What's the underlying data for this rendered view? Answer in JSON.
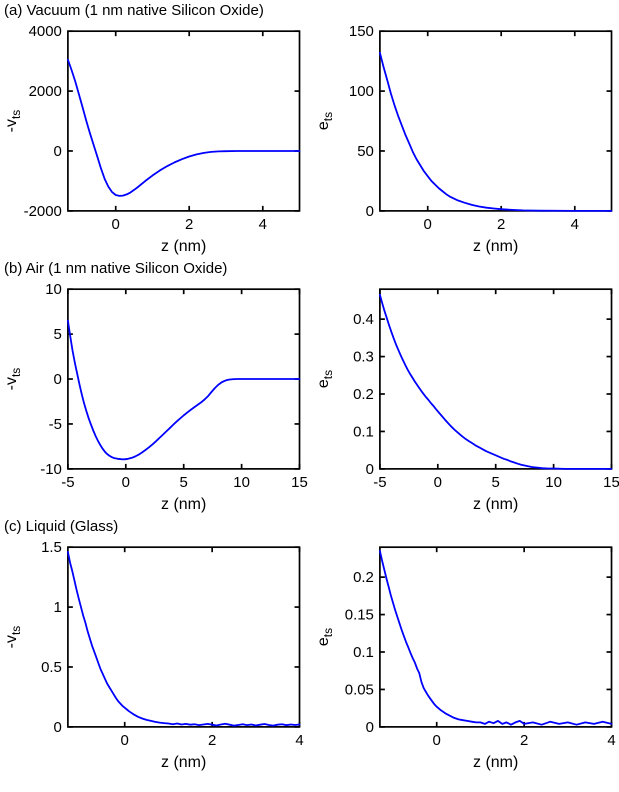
{
  "page": {
    "background": "#ffffff",
    "curve_color": "#0000ff",
    "axis_color": "#000000"
  },
  "sections": [
    {
      "title": "(a) Vacuum (1 nm native Silicon Oxide)"
    },
    {
      "title": "(b) Air (1 nm native Silicon Oxide)"
    },
    {
      "title": "(c) Liquid (Glass)"
    }
  ],
  "chart_data": [
    {
      "type": "line",
      "section": "a",
      "position": "left",
      "xlabel": "z (nm)",
      "ylabel_main": "-v",
      "ylabel_sub": "ts",
      "xlim": [
        -1.3,
        5
      ],
      "ylim": [
        -2000,
        4000
      ],
      "xticks": [
        0,
        2,
        4
      ],
      "yticks": [
        -2000,
        0,
        2000,
        4000
      ],
      "grid": false,
      "legend": null,
      "line_color": "#0000ff",
      "points": [
        [
          -1.3,
          3050
        ],
        [
          -1.2,
          2700
        ],
        [
          -1.1,
          2320
        ],
        [
          -1.0,
          1900
        ],
        [
          -0.9,
          1460
        ],
        [
          -0.8,
          1010
        ],
        [
          -0.7,
          590
        ],
        [
          -0.6,
          200
        ],
        [
          -0.5,
          -190
        ],
        [
          -0.4,
          -580
        ],
        [
          -0.3,
          -930
        ],
        [
          -0.2,
          -1190
        ],
        [
          -0.1,
          -1370
        ],
        [
          0,
          -1470
        ],
        [
          0.1,
          -1500
        ],
        [
          0.2,
          -1490
        ],
        [
          0.3,
          -1450
        ],
        [
          0.4,
          -1385
        ],
        [
          0.5,
          -1300
        ],
        [
          0.6,
          -1205
        ],
        [
          0.8,
          -1005
        ],
        [
          1.0,
          -820
        ],
        [
          1.2,
          -650
        ],
        [
          1.4,
          -505
        ],
        [
          1.6,
          -380
        ],
        [
          1.8,
          -272
        ],
        [
          2.0,
          -182
        ],
        [
          2.2,
          -112
        ],
        [
          2.4,
          -62
        ],
        [
          2.6,
          -30
        ],
        [
          2.8,
          -13
        ],
        [
          3.0,
          -5
        ],
        [
          3.3,
          -1
        ],
        [
          3.6,
          0
        ],
        [
          4.0,
          0
        ],
        [
          4.5,
          0
        ],
        [
          5.0,
          0
        ]
      ]
    },
    {
      "type": "line",
      "section": "a",
      "position": "right",
      "xlabel": "z (nm)",
      "ylabel_main": "e",
      "ylabel_sub": "ts",
      "xlim": [
        -1.3,
        5
      ],
      "ylim": [
        0,
        150
      ],
      "xticks": [
        0,
        2,
        4
      ],
      "yticks": [
        0,
        50,
        100,
        150
      ],
      "grid": false,
      "legend": null,
      "line_color": "#0000ff",
      "points": [
        [
          -1.3,
          132
        ],
        [
          -1.2,
          120
        ],
        [
          -1.1,
          109
        ],
        [
          -1.0,
          98
        ],
        [
          -0.9,
          88
        ],
        [
          -0.8,
          79
        ],
        [
          -0.7,
          71
        ],
        [
          -0.6,
          63
        ],
        [
          -0.5,
          56
        ],
        [
          -0.4,
          49
        ],
        [
          -0.3,
          43
        ],
        [
          -0.2,
          38
        ],
        [
          -0.1,
          33
        ],
        [
          0,
          29
        ],
        [
          0.1,
          25
        ],
        [
          0.2,
          22
        ],
        [
          0.3,
          19
        ],
        [
          0.4,
          16.5
        ],
        [
          0.5,
          14
        ],
        [
          0.6,
          12
        ],
        [
          0.8,
          9
        ],
        [
          1.0,
          6.8
        ],
        [
          1.2,
          5
        ],
        [
          1.4,
          3.7
        ],
        [
          1.6,
          2.7
        ],
        [
          1.8,
          2
        ],
        [
          2.0,
          1.4
        ],
        [
          2.3,
          0.8
        ],
        [
          2.6,
          0.45
        ],
        [
          3.0,
          0.2
        ],
        [
          3.5,
          0.08
        ],
        [
          4.0,
          0.03
        ],
        [
          4.5,
          0
        ],
        [
          5.0,
          0
        ]
      ]
    },
    {
      "type": "line",
      "section": "b",
      "position": "left",
      "xlabel": "z (nm)",
      "ylabel_main": "-v",
      "ylabel_sub": "ts",
      "xlim": [
        -5,
        15
      ],
      "ylim": [
        -10,
        10
      ],
      "xticks": [
        -5,
        0,
        5,
        10,
        15
      ],
      "yticks": [
        -10,
        -5,
        0,
        5,
        10
      ],
      "grid": false,
      "legend": null,
      "line_color": "#0000ff",
      "points": [
        [
          -5,
          6.5
        ],
        [
          -4.8,
          4.8
        ],
        [
          -4.6,
          3.2
        ],
        [
          -4.4,
          1.8
        ],
        [
          -4.2,
          0.6
        ],
        [
          -4.0,
          -0.6
        ],
        [
          -3.8,
          -1.7
        ],
        [
          -3.6,
          -2.7
        ],
        [
          -3.4,
          -3.6
        ],
        [
          -3.2,
          -4.4
        ],
        [
          -3.0,
          -5.1
        ],
        [
          -2.8,
          -5.75
        ],
        [
          -2.6,
          -6.35
        ],
        [
          -2.4,
          -6.9
        ],
        [
          -2.2,
          -7.35
        ],
        [
          -2.0,
          -7.75
        ],
        [
          -1.8,
          -8.1
        ],
        [
          -1.6,
          -8.35
        ],
        [
          -1.4,
          -8.55
        ],
        [
          -1.2,
          -8.7
        ],
        [
          -1.0,
          -8.8
        ],
        [
          -0.7,
          -8.88
        ],
        [
          -0.4,
          -8.92
        ],
        [
          -0.1,
          -8.93
        ],
        [
          0.2,
          -8.88
        ],
        [
          0.5,
          -8.78
        ],
        [
          0.8,
          -8.62
        ],
        [
          1.1,
          -8.42
        ],
        [
          1.4,
          -8.18
        ],
        [
          1.7,
          -7.9
        ],
        [
          2.0,
          -7.6
        ],
        [
          2.3,
          -7.28
        ],
        [
          2.6,
          -6.93
        ],
        [
          2.9,
          -6.57
        ],
        [
          3.2,
          -6.2
        ],
        [
          3.5,
          -5.82
        ],
        [
          3.8,
          -5.45
        ],
        [
          4.1,
          -5.08
        ],
        [
          4.4,
          -4.72
        ],
        [
          4.7,
          -4.38
        ],
        [
          5.0,
          -4.05
        ],
        [
          5.3,
          -3.73
        ],
        [
          5.6,
          -3.43
        ],
        [
          5.9,
          -3.15
        ],
        [
          6.2,
          -2.88
        ],
        [
          6.5,
          -2.6
        ],
        [
          6.8,
          -2.28
        ],
        [
          7.1,
          -1.9
        ],
        [
          7.4,
          -1.45
        ],
        [
          7.7,
          -1.0
        ],
        [
          8.0,
          -0.62
        ],
        [
          8.3,
          -0.35
        ],
        [
          8.6,
          -0.17
        ],
        [
          8.9,
          -0.07
        ],
        [
          9.2,
          -0.02
        ],
        [
          9.6,
          0
        ],
        [
          10,
          0
        ],
        [
          11,
          0
        ],
        [
          12,
          0
        ],
        [
          13,
          0
        ],
        [
          14,
          0
        ],
        [
          15,
          0
        ]
      ]
    },
    {
      "type": "line",
      "section": "b",
      "position": "right",
      "xlabel": "z (nm)",
      "ylabel_main": "e",
      "ylabel_sub": "ts",
      "xlim": [
        -5,
        15
      ],
      "ylim": [
        0,
        0.48
      ],
      "xticks": [
        -5,
        0,
        5,
        10,
        15
      ],
      "yticks": [
        0,
        0.1,
        0.2,
        0.3,
        0.4
      ],
      "grid": false,
      "legend": null,
      "line_color": "#0000ff",
      "points": [
        [
          -5,
          0.465
        ],
        [
          -4.8,
          0.443
        ],
        [
          -4.6,
          0.422
        ],
        [
          -4.4,
          0.402
        ],
        [
          -4.2,
          0.383
        ],
        [
          -4.0,
          0.365
        ],
        [
          -3.8,
          0.348
        ],
        [
          -3.6,
          0.332
        ],
        [
          -3.4,
          0.317
        ],
        [
          -3.2,
          0.303
        ],
        [
          -3.0,
          0.29
        ],
        [
          -2.8,
          0.277
        ],
        [
          -2.6,
          0.265
        ],
        [
          -2.4,
          0.254
        ],
        [
          -2.2,
          0.244
        ],
        [
          -2.0,
          0.234
        ],
        [
          -1.8,
          0.225
        ],
        [
          -1.6,
          0.216
        ],
        [
          -1.4,
          0.207
        ],
        [
          -1.2,
          0.199
        ],
        [
          -1.0,
          0.191
        ],
        [
          -0.8,
          0.184
        ],
        [
          -0.6,
          0.176
        ],
        [
          -0.4,
          0.169
        ],
        [
          -0.2,
          0.161
        ],
        [
          0,
          0.154
        ],
        [
          0.3,
          0.143
        ],
        [
          0.6,
          0.132
        ],
        [
          0.9,
          0.122
        ],
        [
          1.2,
          0.112
        ],
        [
          1.5,
          0.103
        ],
        [
          1.8,
          0.095
        ],
        [
          2.1,
          0.087
        ],
        [
          2.4,
          0.08
        ],
        [
          2.7,
          0.074
        ],
        [
          3.0,
          0.068
        ],
        [
          3.3,
          0.062
        ],
        [
          3.6,
          0.057
        ],
        [
          3.9,
          0.052
        ],
        [
          4.2,
          0.047
        ],
        [
          4.5,
          0.043
        ],
        [
          4.8,
          0.039
        ],
        [
          5.1,
          0.035
        ],
        [
          5.4,
          0.031
        ],
        [
          5.7,
          0.027
        ],
        [
          6.0,
          0.024
        ],
        [
          6.3,
          0.02
        ],
        [
          6.6,
          0.017
        ],
        [
          6.9,
          0.014
        ],
        [
          7.2,
          0.011
        ],
        [
          7.5,
          0.009
        ],
        [
          7.8,
          0.007
        ],
        [
          8.1,
          0.005
        ],
        [
          8.4,
          0.004
        ],
        [
          8.7,
          0.003
        ],
        [
          9.0,
          0.002
        ],
        [
          9.5,
          0.001
        ],
        [
          10,
          0.001
        ],
        [
          11,
          0
        ],
        [
          12,
          0
        ],
        [
          13,
          0
        ],
        [
          14,
          0
        ],
        [
          15,
          0
        ]
      ]
    },
    {
      "type": "line",
      "section": "c",
      "position": "left",
      "xlabel": "z (nm)",
      "ylabel_main": "-v",
      "ylabel_sub": "ts",
      "xlim": [
        -1.3,
        4
      ],
      "ylim": [
        0,
        1.5
      ],
      "xticks": [
        0,
        2,
        4
      ],
      "yticks": [
        0,
        0.5,
        1,
        1.5
      ],
      "grid": false,
      "legend": null,
      "line_color": "#0000ff",
      "points": [
        [
          -1.3,
          1.46
        ],
        [
          -1.25,
          1.37
        ],
        [
          -1.2,
          1.3
        ],
        [
          -1.15,
          1.22
        ],
        [
          -1.1,
          1.14
        ],
        [
          -1.05,
          1.07
        ],
        [
          -1.0,
          1.0
        ],
        [
          -0.95,
          0.93
        ],
        [
          -0.9,
          0.87
        ],
        [
          -0.85,
          0.8
        ],
        [
          -0.8,
          0.74
        ],
        [
          -0.75,
          0.68
        ],
        [
          -0.7,
          0.63
        ],
        [
          -0.65,
          0.58
        ],
        [
          -0.6,
          0.53
        ],
        [
          -0.55,
          0.48
        ],
        [
          -0.5,
          0.44
        ],
        [
          -0.45,
          0.4
        ],
        [
          -0.4,
          0.36
        ],
        [
          -0.35,
          0.33
        ],
        [
          -0.3,
          0.3
        ],
        [
          -0.25,
          0.27
        ],
        [
          -0.2,
          0.24
        ],
        [
          -0.15,
          0.215
        ],
        [
          -0.1,
          0.195
        ],
        [
          -0.05,
          0.175
        ],
        [
          0,
          0.16
        ],
        [
          0.1,
          0.13
        ],
        [
          0.2,
          0.105
        ],
        [
          0.3,
          0.085
        ],
        [
          0.4,
          0.07
        ],
        [
          0.5,
          0.058
        ],
        [
          0.6,
          0.05
        ],
        [
          0.7,
          0.042
        ],
        [
          0.8,
          0.036
        ],
        [
          0.9,
          0.032
        ],
        [
          1.0,
          0.028
        ],
        [
          1.1,
          0.022
        ],
        [
          1.2,
          0.028
        ],
        [
          1.3,
          0.02
        ],
        [
          1.4,
          0.025
        ],
        [
          1.5,
          0.018
        ],
        [
          1.6,
          0.022
        ],
        [
          1.7,
          0.015
        ],
        [
          1.8,
          0.02
        ],
        [
          1.9,
          0.025
        ],
        [
          2.0,
          0.018
        ],
        [
          2.1,
          0.012
        ],
        [
          2.2,
          0.02
        ],
        [
          2.3,
          0.026
        ],
        [
          2.4,
          0.018
        ],
        [
          2.5,
          0.01
        ],
        [
          2.6,
          0.016
        ],
        [
          2.7,
          0.022
        ],
        [
          2.8,
          0.015
        ],
        [
          2.9,
          0.02
        ],
        [
          3.0,
          0.012
        ],
        [
          3.1,
          0.018
        ],
        [
          3.2,
          0.024
        ],
        [
          3.3,
          0.016
        ],
        [
          3.4,
          0.01
        ],
        [
          3.5,
          0.018
        ],
        [
          3.6,
          0.022
        ],
        [
          3.7,
          0.014
        ],
        [
          3.8,
          0.02
        ],
        [
          3.9,
          0.016
        ],
        [
          4.0,
          0.02
        ]
      ]
    },
    {
      "type": "line",
      "section": "c",
      "position": "right",
      "xlabel": "z (nm)",
      "ylabel_main": "e",
      "ylabel_sub": "ts",
      "xlim": [
        -1.3,
        4
      ],
      "ylim": [
        0,
        0.24
      ],
      "xticks": [
        0,
        2,
        4
      ],
      "yticks": [
        0,
        0.05,
        0.1,
        0.15,
        0.2
      ],
      "grid": false,
      "legend": null,
      "line_color": "#0000ff",
      "points": [
        [
          -1.3,
          0.235
        ],
        [
          -1.25,
          0.222
        ],
        [
          -1.2,
          0.21
        ],
        [
          -1.15,
          0.198
        ],
        [
          -1.1,
          0.187
        ],
        [
          -1.05,
          0.176
        ],
        [
          -1.0,
          0.166
        ],
        [
          -0.95,
          0.156
        ],
        [
          -0.9,
          0.147
        ],
        [
          -0.85,
          0.138
        ],
        [
          -0.8,
          0.129
        ],
        [
          -0.75,
          0.121
        ],
        [
          -0.7,
          0.113
        ],
        [
          -0.65,
          0.106
        ],
        [
          -0.6,
          0.099
        ],
        [
          -0.55,
          0.092
        ],
        [
          -0.5,
          0.086
        ],
        [
          -0.45,
          0.078
        ],
        [
          -0.4,
          0.072
        ],
        [
          -0.35,
          0.06
        ],
        [
          -0.3,
          0.052
        ],
        [
          -0.25,
          0.047
        ],
        [
          -0.2,
          0.042
        ],
        [
          -0.15,
          0.038
        ],
        [
          -0.1,
          0.034
        ],
        [
          -0.05,
          0.03
        ],
        [
          0,
          0.027
        ],
        [
          0.1,
          0.022
        ],
        [
          0.2,
          0.018
        ],
        [
          0.3,
          0.015
        ],
        [
          0.4,
          0.012
        ],
        [
          0.5,
          0.01
        ],
        [
          0.6,
          0.009
        ],
        [
          0.7,
          0.008
        ],
        [
          0.8,
          0.007
        ],
        [
          0.9,
          0.006
        ],
        [
          1.0,
          0.006
        ],
        [
          1.1,
          0.004
        ],
        [
          1.2,
          0.007
        ],
        [
          1.3,
          0.005
        ],
        [
          1.4,
          0.008
        ],
        [
          1.5,
          0.004
        ],
        [
          1.6,
          0.006
        ],
        [
          1.7,
          0.003
        ],
        [
          1.8,
          0.006
        ],
        [
          1.9,
          0.008
        ],
        [
          2.0,
          0.004
        ],
        [
          2.2,
          0.006
        ],
        [
          2.4,
          0.003
        ],
        [
          2.6,
          0.007
        ],
        [
          2.8,
          0.004
        ],
        [
          3.0,
          0.006
        ],
        [
          3.2,
          0.003
        ],
        [
          3.4,
          0.006
        ],
        [
          3.6,
          0.004
        ],
        [
          3.8,
          0.007
        ],
        [
          4.0,
          0.004
        ]
      ]
    }
  ]
}
